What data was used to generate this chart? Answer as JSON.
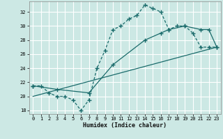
{
  "xlabel": "Humidex (Indice chaleur)",
  "background_color": "#cce8e4",
  "grid_color": "#b0d4d0",
  "line_color": "#1a6b6b",
  "xlim": [
    -0.5,
    23.5
  ],
  "ylim": [
    17.5,
    33.5
  ],
  "yticks": [
    18,
    20,
    22,
    24,
    26,
    28,
    30,
    32
  ],
  "xticks": [
    0,
    1,
    2,
    3,
    4,
    5,
    6,
    7,
    8,
    9,
    10,
    11,
    12,
    13,
    14,
    15,
    16,
    17,
    18,
    19,
    20,
    21,
    22,
    23
  ],
  "curve1_x": [
    0,
    1,
    2,
    3,
    4,
    5,
    6,
    7,
    8,
    9,
    10,
    11,
    12,
    13,
    14,
    15,
    16,
    17,
    18,
    19,
    20,
    21,
    22,
    23
  ],
  "curve1_y": [
    21.5,
    21.5,
    20.5,
    20.0,
    20.0,
    19.5,
    18.0,
    19.5,
    24.0,
    26.5,
    29.5,
    30.0,
    31.0,
    31.5,
    33.0,
    32.5,
    32.0,
    29.5,
    30.0,
    30.0,
    29.0,
    27.0,
    27.0,
    27.0
  ],
  "curve2_x": [
    0,
    3,
    7,
    10,
    14,
    16,
    17,
    19,
    21,
    22,
    23
  ],
  "curve2_y": [
    21.5,
    21.0,
    20.5,
    24.5,
    28.0,
    29.0,
    29.5,
    30.0,
    29.5,
    29.5,
    27.0
  ],
  "line_x": [
    0,
    23
  ],
  "line_y": [
    20.0,
    27.0
  ]
}
